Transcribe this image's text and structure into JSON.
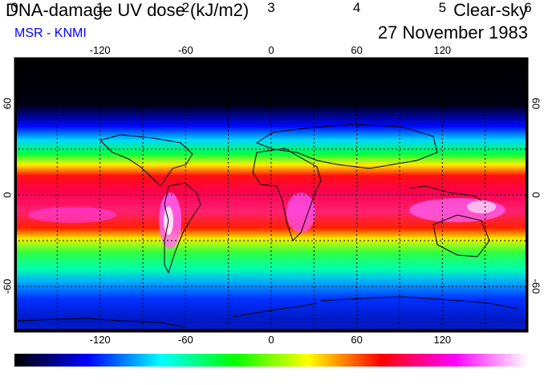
{
  "header": {
    "title": "DNA-damage UV dose (kJ/m2)",
    "source": "MSR - KNMI",
    "condition": "Clear-sky",
    "date": "27 November 1983"
  },
  "map": {
    "lon_ticks_top": [
      "-120",
      "-60",
      "0",
      "60",
      "120"
    ],
    "lon_ticks_bottom": [
      "-120",
      "-60",
      "0",
      "60",
      "120"
    ],
    "lat_ticks_left": [
      "60",
      "0",
      "-60"
    ],
    "lat_ticks_right": [
      "60",
      "0",
      "-60"
    ],
    "lon_values": [
      -120,
      -60,
      0,
      60,
      120
    ],
    "lat_values": [
      60,
      0,
      -60
    ],
    "grid_lon": [
      -150,
      -120,
      -90,
      -60,
      -30,
      0,
      30,
      60,
      90,
      120,
      150
    ],
    "grid_lat": [
      60,
      30,
      0,
      -30,
      -60
    ],
    "lon_range": [
      -180,
      180
    ],
    "lat_range": [
      -90,
      90
    ],
    "grid": true
  },
  "colorbar": {
    "labels": [
      "0",
      "1",
      "2",
      "3",
      "4",
      "5",
      "6"
    ],
    "min": 0,
    "max": 6,
    "colors": [
      "#000000",
      "#0000ff",
      "#00ffff",
      "#00ff00",
      "#ffff00",
      "#ff0000",
      "#ff00ff",
      "#ffffff"
    ]
  }
}
